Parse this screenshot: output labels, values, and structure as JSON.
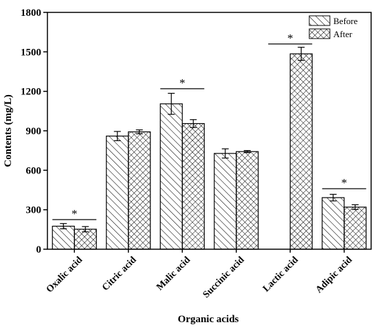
{
  "chart_data": {
    "type": "bar",
    "title": "",
    "xlabel": "Organic acids",
    "ylabel": "Contents (mg/L)",
    "ylim": [
      0,
      1800
    ],
    "yticks": [
      0,
      300,
      600,
      900,
      1200,
      1500,
      1800
    ],
    "categories": [
      "Oxalic acid",
      "Citric acid",
      "Malic acid",
      "Succinic acid",
      "Lactic acid",
      "Adipic acid"
    ],
    "series": [
      {
        "name": "Before",
        "pattern": "diagonal-hatch",
        "values": [
          175,
          860,
          1105,
          728,
          0,
          392
        ],
        "errors": [
          20,
          35,
          80,
          35,
          0,
          25
        ]
      },
      {
        "name": "After",
        "pattern": "cross-hatch",
        "values": [
          152,
          892,
          955,
          742,
          1485,
          320
        ],
        "errors": [
          20,
          15,
          30,
          8,
          50,
          18
        ]
      }
    ],
    "significance": [
      {
        "category": "Oxalic acid",
        "label": "*",
        "value": 225
      },
      {
        "category": "Malic acid",
        "label": "*",
        "value": 1220
      },
      {
        "category": "Lactic acid",
        "label": "*",
        "value": 1560
      },
      {
        "category": "Adipic acid",
        "label": "*",
        "value": 460
      }
    ],
    "legend": {
      "position": "top-right"
    },
    "grid": false,
    "colors": {
      "axis": "#000000",
      "bar_fill": "#ffffff",
      "hatch": "#000000"
    }
  }
}
